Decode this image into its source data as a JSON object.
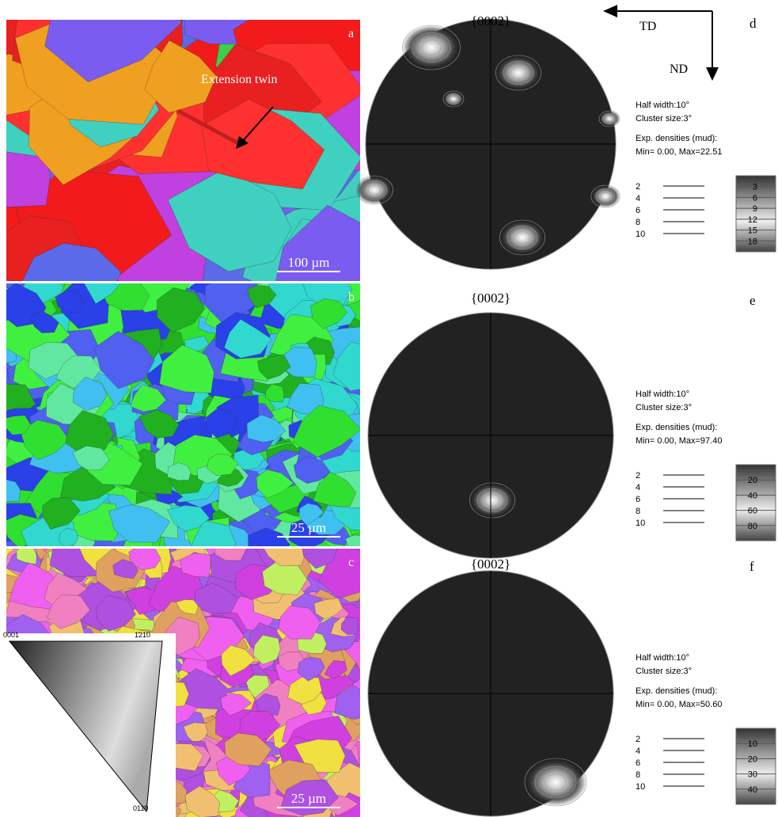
{
  "panels": [
    {
      "label": "a",
      "scale_bar": "100 µm",
      "annotation": "Extension twin"
    },
    {
      "label": "b",
      "scale_bar": "25 µm"
    },
    {
      "label": "c",
      "scale_bar": "25 µm",
      "inset": {
        "top_left": "0001",
        "top_right": "1̄21̄0",
        "bottom": "011̄0"
      }
    }
  ],
  "axes": {
    "horizontal": "TD",
    "vertical": "ND"
  },
  "pole_figures": [
    {
      "label": "d",
      "title": "{0002}",
      "half_width": "Half width:10°",
      "cluster_size": "Cluster size:3°",
      "densities_heading": "Exp. densities (mud):",
      "min_max": "Min= 0.00, Max=22.51",
      "levels": [
        "2",
        "4",
        "6",
        "8",
        "10"
      ],
      "scale": [
        "3",
        "6",
        "9",
        "12",
        "15",
        "18"
      ]
    },
    {
      "label": "e",
      "title": "{0002}",
      "half_width": "Half width:10°",
      "cluster_size": "Cluster size:3°",
      "densities_heading": "Exp. densities (mud):",
      "min_max": "Min= 0.00, Max=97.40",
      "levels": [
        "2",
        "4",
        "6",
        "8",
        "10"
      ],
      "scale": [
        "20",
        "40",
        "60",
        "80"
      ]
    },
    {
      "label": "f",
      "title": "{0002}",
      "half_width": "Half width:10°",
      "cluster_size": "Cluster size:3°",
      "densities_heading": "Exp. densities (mud):",
      "min_max": "Min= 0.00, Max=50.60",
      "levels": [
        "2",
        "4",
        "6",
        "8",
        "10"
      ],
      "scale": [
        "10",
        "20",
        "30",
        "40"
      ]
    }
  ]
}
